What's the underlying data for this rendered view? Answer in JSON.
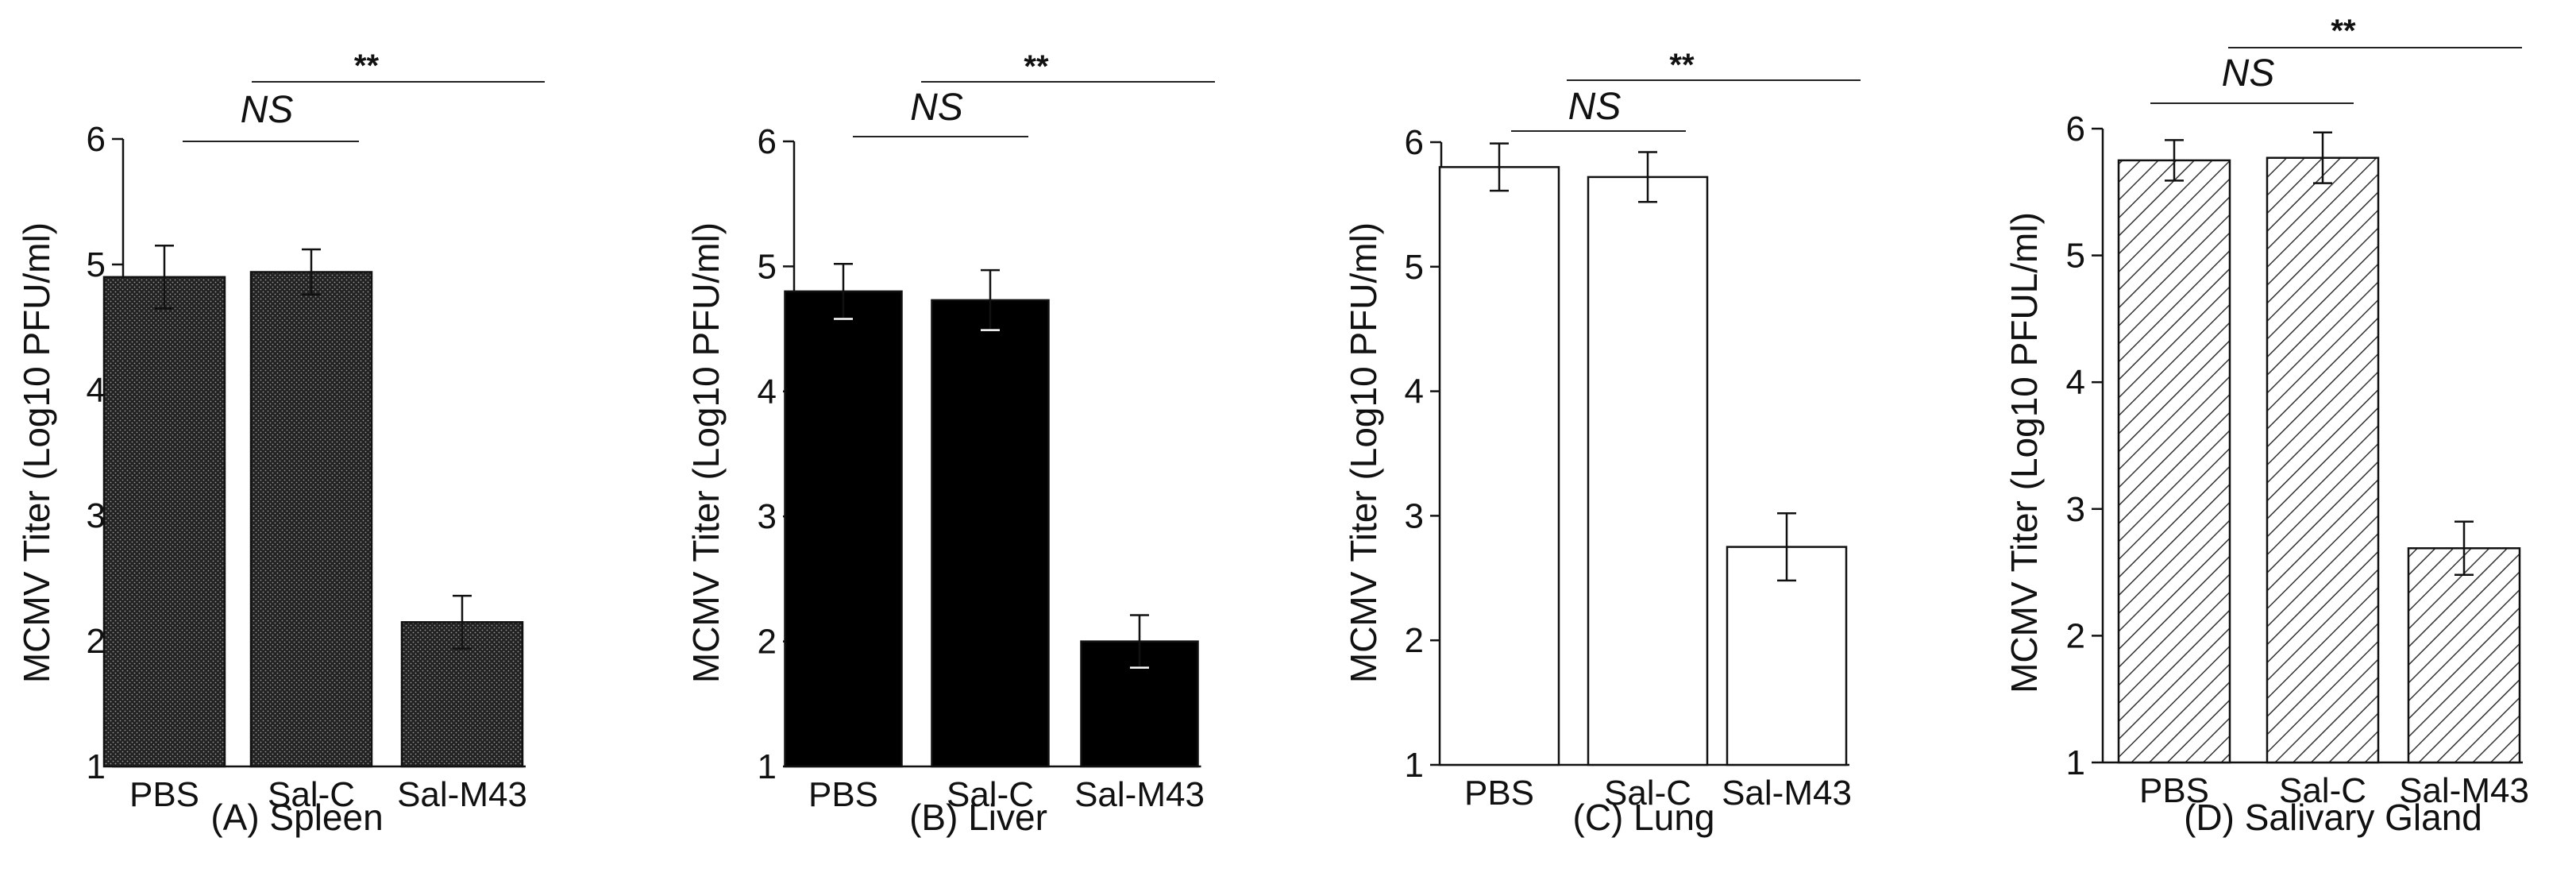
{
  "chart_data": [
    {
      "type": "bar",
      "panel_label": "(A) Spleen",
      "ylabel": "MCMV Titer (Log10  PFU/ml)",
      "ylim": [
        1,
        6
      ],
      "yticks": [
        "1",
        "2",
        "3",
        "4",
        "5",
        "6"
      ],
      "categories": [
        "PBS",
        "Sal-C",
        "Sal-M43"
      ],
      "values": [
        4.9,
        4.94,
        2.15
      ],
      "errors": [
        0.25,
        0.18,
        0.21
      ],
      "fill_style": "dotted-dark",
      "annotations": [
        {
          "text": "NS",
          "italic": true,
          "from": "PBS",
          "to": "Sal-C"
        },
        {
          "text": "**",
          "italic": false,
          "from": "PBS",
          "to": "Sal-M43"
        }
      ]
    },
    {
      "type": "bar",
      "panel_label": "(B) Liver",
      "ylabel": "MCMV Titer (Log10  PFU/ml)",
      "ylim": [
        1,
        6
      ],
      "yticks": [
        "1",
        "2",
        "3",
        "4",
        "5",
        "6"
      ],
      "categories": [
        "PBS",
        "Sal-C",
        "Sal-M43"
      ],
      "values": [
        4.8,
        4.73,
        2.0
      ],
      "errors": [
        0.22,
        0.24,
        0.21
      ],
      "fill_style": "solid-black",
      "annotations": [
        {
          "text": "NS",
          "italic": true,
          "from": "PBS",
          "to": "Sal-C"
        },
        {
          "text": "**",
          "italic": false,
          "from": "PBS",
          "to": "Sal-M43"
        }
      ]
    },
    {
      "type": "bar",
      "panel_label": "(C) Lung",
      "ylabel": "MCMV Titer (Log10 PFU/ml)",
      "ylim": [
        1,
        6
      ],
      "yticks": [
        "1",
        "2",
        "3",
        "4",
        "5",
        "6"
      ],
      "categories": [
        "PBS",
        "Sal-C",
        "Sal-M43"
      ],
      "values": [
        5.8,
        5.72,
        2.75
      ],
      "errors": [
        0.19,
        0.2,
        0.27
      ],
      "fill_style": "white",
      "annotations": [
        {
          "text": "NS",
          "italic": true,
          "from": "PBS",
          "to": "Sal-C"
        },
        {
          "text": "**",
          "italic": false,
          "from": "PBS",
          "to": "Sal-M43"
        }
      ]
    },
    {
      "type": "bar",
      "panel_label": "(D) Salivary Gland",
      "ylabel": "MCMV Titer (Log10 PFUL/ml)",
      "ylim": [
        1,
        6
      ],
      "yticks": [
        "1",
        "2",
        "3",
        "4",
        "5",
        "6"
      ],
      "categories": [
        "PBS",
        "Sal-C",
        "Sal-M43"
      ],
      "values": [
        5.75,
        5.77,
        2.69
      ],
      "errors": [
        0.16,
        0.2,
        0.21
      ],
      "fill_style": "hatched",
      "annotations": [
        {
          "text": "NS",
          "italic": true,
          "from": "PBS",
          "to": "Sal-C"
        },
        {
          "text": "**",
          "italic": false,
          "from": "PBS",
          "to": "Sal-M43"
        }
      ]
    }
  ]
}
